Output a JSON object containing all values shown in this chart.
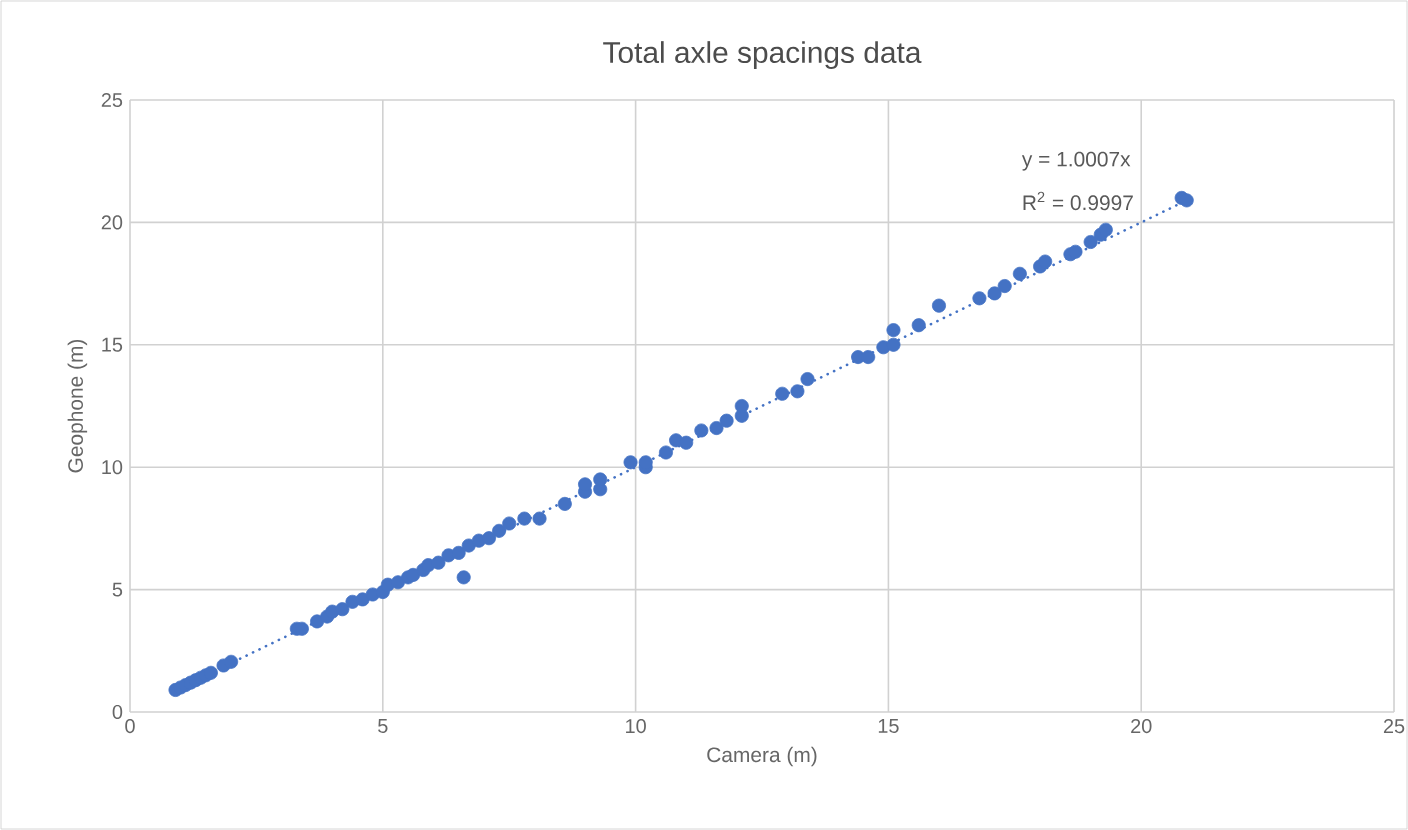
{
  "chart_data": {
    "type": "scatter",
    "title": "Total axle spacings data",
    "xlabel": "Camera (m)",
    "ylabel": "Geophone (m)",
    "xlim": [
      0,
      25
    ],
    "xticks": [
      0,
      5,
      10,
      15,
      20,
      25
    ],
    "ylim": [
      0,
      25
    ],
    "yticks": [
      0,
      5,
      10,
      15,
      20,
      25
    ],
    "grid": true,
    "marker": "circle",
    "annotations": [
      "y = 1.0007x",
      "R$^{2}$ = 0.9997"
    ],
    "series": [
      {
        "color": "#4472c4",
        "x": [
          0.9,
          1.0,
          1.1,
          1.2,
          1.3,
          1.4,
          1.5,
          1.6,
          1.85,
          2.0,
          3.3,
          3.4,
          3.7,
          3.9,
          4.0,
          4.2,
          4.4,
          4.6,
          4.8,
          5.0,
          5.1,
          5.3,
          5.5,
          5.6,
          5.8,
          5.9,
          6.1,
          6.3,
          6.5,
          6.6,
          6.7,
          6.9,
          7.1,
          7.3,
          7.5,
          7.8,
          8.1,
          8.6,
          9.0,
          9.0,
          9.3,
          9.3,
          9.9,
          10.2,
          10.2,
          10.6,
          10.8,
          11.0,
          11.3,
          11.6,
          11.8,
          12.1,
          12.1,
          12.9,
          13.2,
          13.4,
          14.4,
          14.6,
          14.9,
          15.1,
          15.1,
          15.6,
          16.0,
          16.8,
          17.1,
          17.3,
          17.6,
          18.0,
          18.1,
          18.6,
          18.7,
          19.0,
          19.2,
          19.3,
          20.8,
          20.9
        ],
        "values": [
          0.9,
          1.0,
          1.1,
          1.2,
          1.3,
          1.4,
          1.5,
          1.6,
          1.9,
          2.05,
          3.4,
          3.4,
          3.7,
          3.9,
          4.1,
          4.2,
          4.5,
          4.6,
          4.8,
          4.9,
          5.2,
          5.3,
          5.5,
          5.6,
          5.8,
          6.0,
          6.1,
          6.4,
          6.5,
          5.5,
          6.8,
          7.0,
          7.1,
          7.4,
          7.7,
          7.9,
          7.9,
          8.5,
          9.0,
          9.3,
          9.1,
          9.5,
          10.2,
          10.0,
          10.2,
          10.6,
          11.1,
          11.0,
          11.5,
          11.6,
          11.9,
          12.1,
          12.5,
          13.0,
          13.1,
          13.6,
          14.5,
          14.5,
          14.9,
          15.0,
          15.6,
          15.8,
          16.6,
          16.9,
          17.1,
          17.4,
          17.9,
          18.2,
          18.4,
          18.7,
          18.8,
          19.2,
          19.5,
          19.7,
          21.0,
          20.9
        ]
      },
      {
        "type": "line",
        "color": "#4472c4",
        "line_style": "dotted",
        "marker": "none",
        "x": [
          0.9,
          20.9
        ],
        "values": [
          0.9,
          20.9
        ]
      }
    ]
  }
}
